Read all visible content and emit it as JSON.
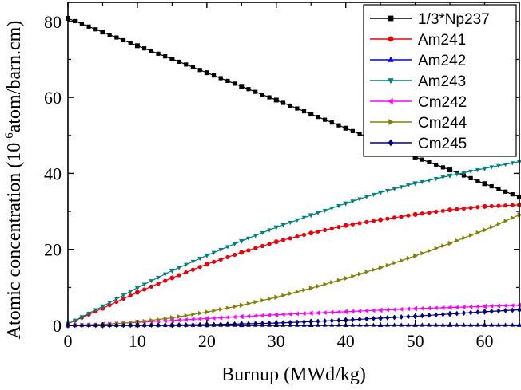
{
  "chart_data": {
    "type": "line",
    "xlabel": "Burnup (MWd/kg)",
    "ylabel_prefix": "Atomic concentration (10",
    "ylabel_exp": "-6",
    "ylabel_suffix": "atom/barn.cm)",
    "xlim": [
      0,
      65
    ],
    "ylim": [
      0,
      85
    ],
    "xticks": [
      0,
      10,
      20,
      30,
      40,
      50,
      60
    ],
    "yticks": [
      0,
      20,
      40,
      60,
      80
    ],
    "grid": false,
    "legend_position": "top-right",
    "x": [
      0,
      5,
      10,
      15,
      20,
      25,
      30,
      35,
      40,
      45,
      50,
      55,
      60,
      65
    ],
    "series": [
      {
        "name": "1/3*Np237",
        "color": "#000000",
        "marker": "square",
        "values": [
          80.8,
          77.2,
          73.6,
          70.1,
          66.5,
          62.9,
          59.3,
          55.6,
          51.9,
          48.1,
          44.3,
          40.9,
          37.3,
          33.8
        ]
      },
      {
        "name": "Am241",
        "color": "#e8000b",
        "marker": "circle",
        "values": [
          0.4,
          4.5,
          8.7,
          12.5,
          16.1,
          19.2,
          22.0,
          24.3,
          26.3,
          27.8,
          29.2,
          30.4,
          31.3,
          31.7
        ]
      },
      {
        "name": "Am242",
        "color": "#0000ee",
        "marker": "triangle-up",
        "values": [
          0,
          0.02,
          0.04,
          0.05,
          0.06,
          0.07,
          0.08,
          0.08,
          0.09,
          0.09,
          0.1,
          0.1,
          0.1,
          0.1
        ]
      },
      {
        "name": "Am243",
        "color": "#008080",
        "marker": "triangle-down",
        "values": [
          0.4,
          5.0,
          9.9,
          14.4,
          18.4,
          22.2,
          25.8,
          29.0,
          32.1,
          35.0,
          37.4,
          39.4,
          41.3,
          43.1
        ]
      },
      {
        "name": "Cm242",
        "color": "#ff00ff",
        "marker": "triangle-left",
        "values": [
          0,
          0.3,
          0.8,
          1.3,
          1.8,
          2.3,
          2.8,
          3.2,
          3.6,
          4.0,
          4.4,
          4.7,
          5.0,
          5.3
        ]
      },
      {
        "name": "Cm244",
        "color": "#808000",
        "marker": "triangle-right",
        "values": [
          0,
          0.2,
          0.9,
          2.0,
          3.5,
          5.3,
          7.4,
          9.8,
          12.4,
          15.2,
          18.3,
          21.6,
          25.1,
          29.1
        ]
      },
      {
        "name": "Cm245",
        "color": "#000080",
        "marker": "diamond",
        "values": [
          0,
          0.0,
          0.05,
          0.1,
          0.2,
          0.4,
          0.6,
          1.0,
          1.4,
          1.9,
          2.4,
          3.0,
          3.6,
          4.1
        ]
      }
    ]
  }
}
